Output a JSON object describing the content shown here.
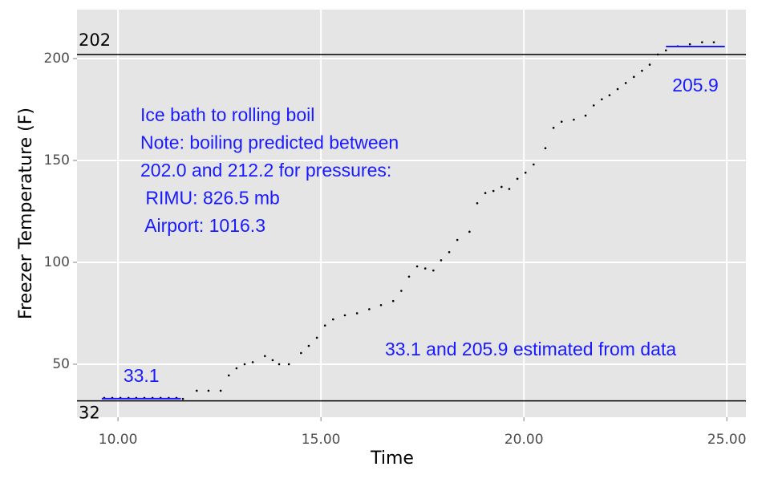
{
  "chart_data": {
    "type": "scatter",
    "x_label": "Time",
    "y_label": "Freezer Temperature (F)",
    "xlim": [
      8.99,
      25.47
    ],
    "ylim": [
      24,
      224
    ],
    "xticks": [
      {
        "value": 10,
        "label": "10.00"
      },
      {
        "value": 15,
        "label": "15.00"
      },
      {
        "value": 20,
        "label": "20.00"
      },
      {
        "value": 25,
        "label": "25.00"
      }
    ],
    "yticks": [
      50,
      100,
      150,
      200
    ],
    "grid": true,
    "color": "#000000",
    "x": [
      9.66,
      9.86,
      10.06,
      10.26,
      10.45,
      10.65,
      10.85,
      11.05,
      11.25,
      11.44,
      11.6,
      11.94,
      12.23,
      12.53,
      12.73,
      12.92,
      13.12,
      13.32,
      13.62,
      13.81,
      13.97,
      14.21,
      14.51,
      14.7,
      14.9,
      15.1,
      15.3,
      15.59,
      15.89,
      16.19,
      16.48,
      16.78,
      16.98,
      17.17,
      17.37,
      17.57,
      17.77,
      17.96,
      18.16,
      18.36,
      18.66,
      18.85,
      19.05,
      19.25,
      19.45,
      19.64,
      19.84,
      20.04,
      20.24,
      20.53,
      20.73,
      20.93,
      21.23,
      21.52,
      21.72,
      21.92,
      22.11,
      22.31,
      22.51,
      22.71,
      22.91,
      23.1,
      23.3,
      23.5,
      23.79,
      24.09,
      24.39,
      24.68
    ],
    "values": [
      33.5,
      33.5,
      33.5,
      33.5,
      33.5,
      33.5,
      33.5,
      33.5,
      33.5,
      33.5,
      33,
      37,
      37,
      37,
      44.5,
      48,
      50,
      51,
      54,
      52,
      50,
      50,
      55.5,
      59,
      63,
      69,
      72,
      74,
      75,
      77,
      79,
      81,
      86,
      93,
      98,
      97,
      96,
      101,
      105,
      111,
      115,
      129,
      134,
      135,
      137,
      136,
      141,
      144,
      148,
      156,
      166,
      169,
      170,
      172,
      177,
      180,
      182,
      185,
      188,
      191,
      194,
      197,
      202,
      204,
      206,
      207,
      208,
      208
    ],
    "hlines": [
      {
        "value": 202
      },
      {
        "value": 32
      }
    ],
    "segments": [
      {
        "x": [
          9.6,
          11.55
        ],
        "y": 33.1
      },
      {
        "x": [
          23.5,
          24.95
        ],
        "y": 205.9
      }
    ],
    "segment_color": "#1a1aff",
    "annotation_lines": [
      "Ice bath to rolling boil",
      "Note: boiling predicted between",
      "202.0 and 212.2 for pressures:",
      " RIMU: 826.5 mb",
      " Airport: 1016.3"
    ],
    "footnote": "33.1 and 205.9 estimated from data"
  }
}
